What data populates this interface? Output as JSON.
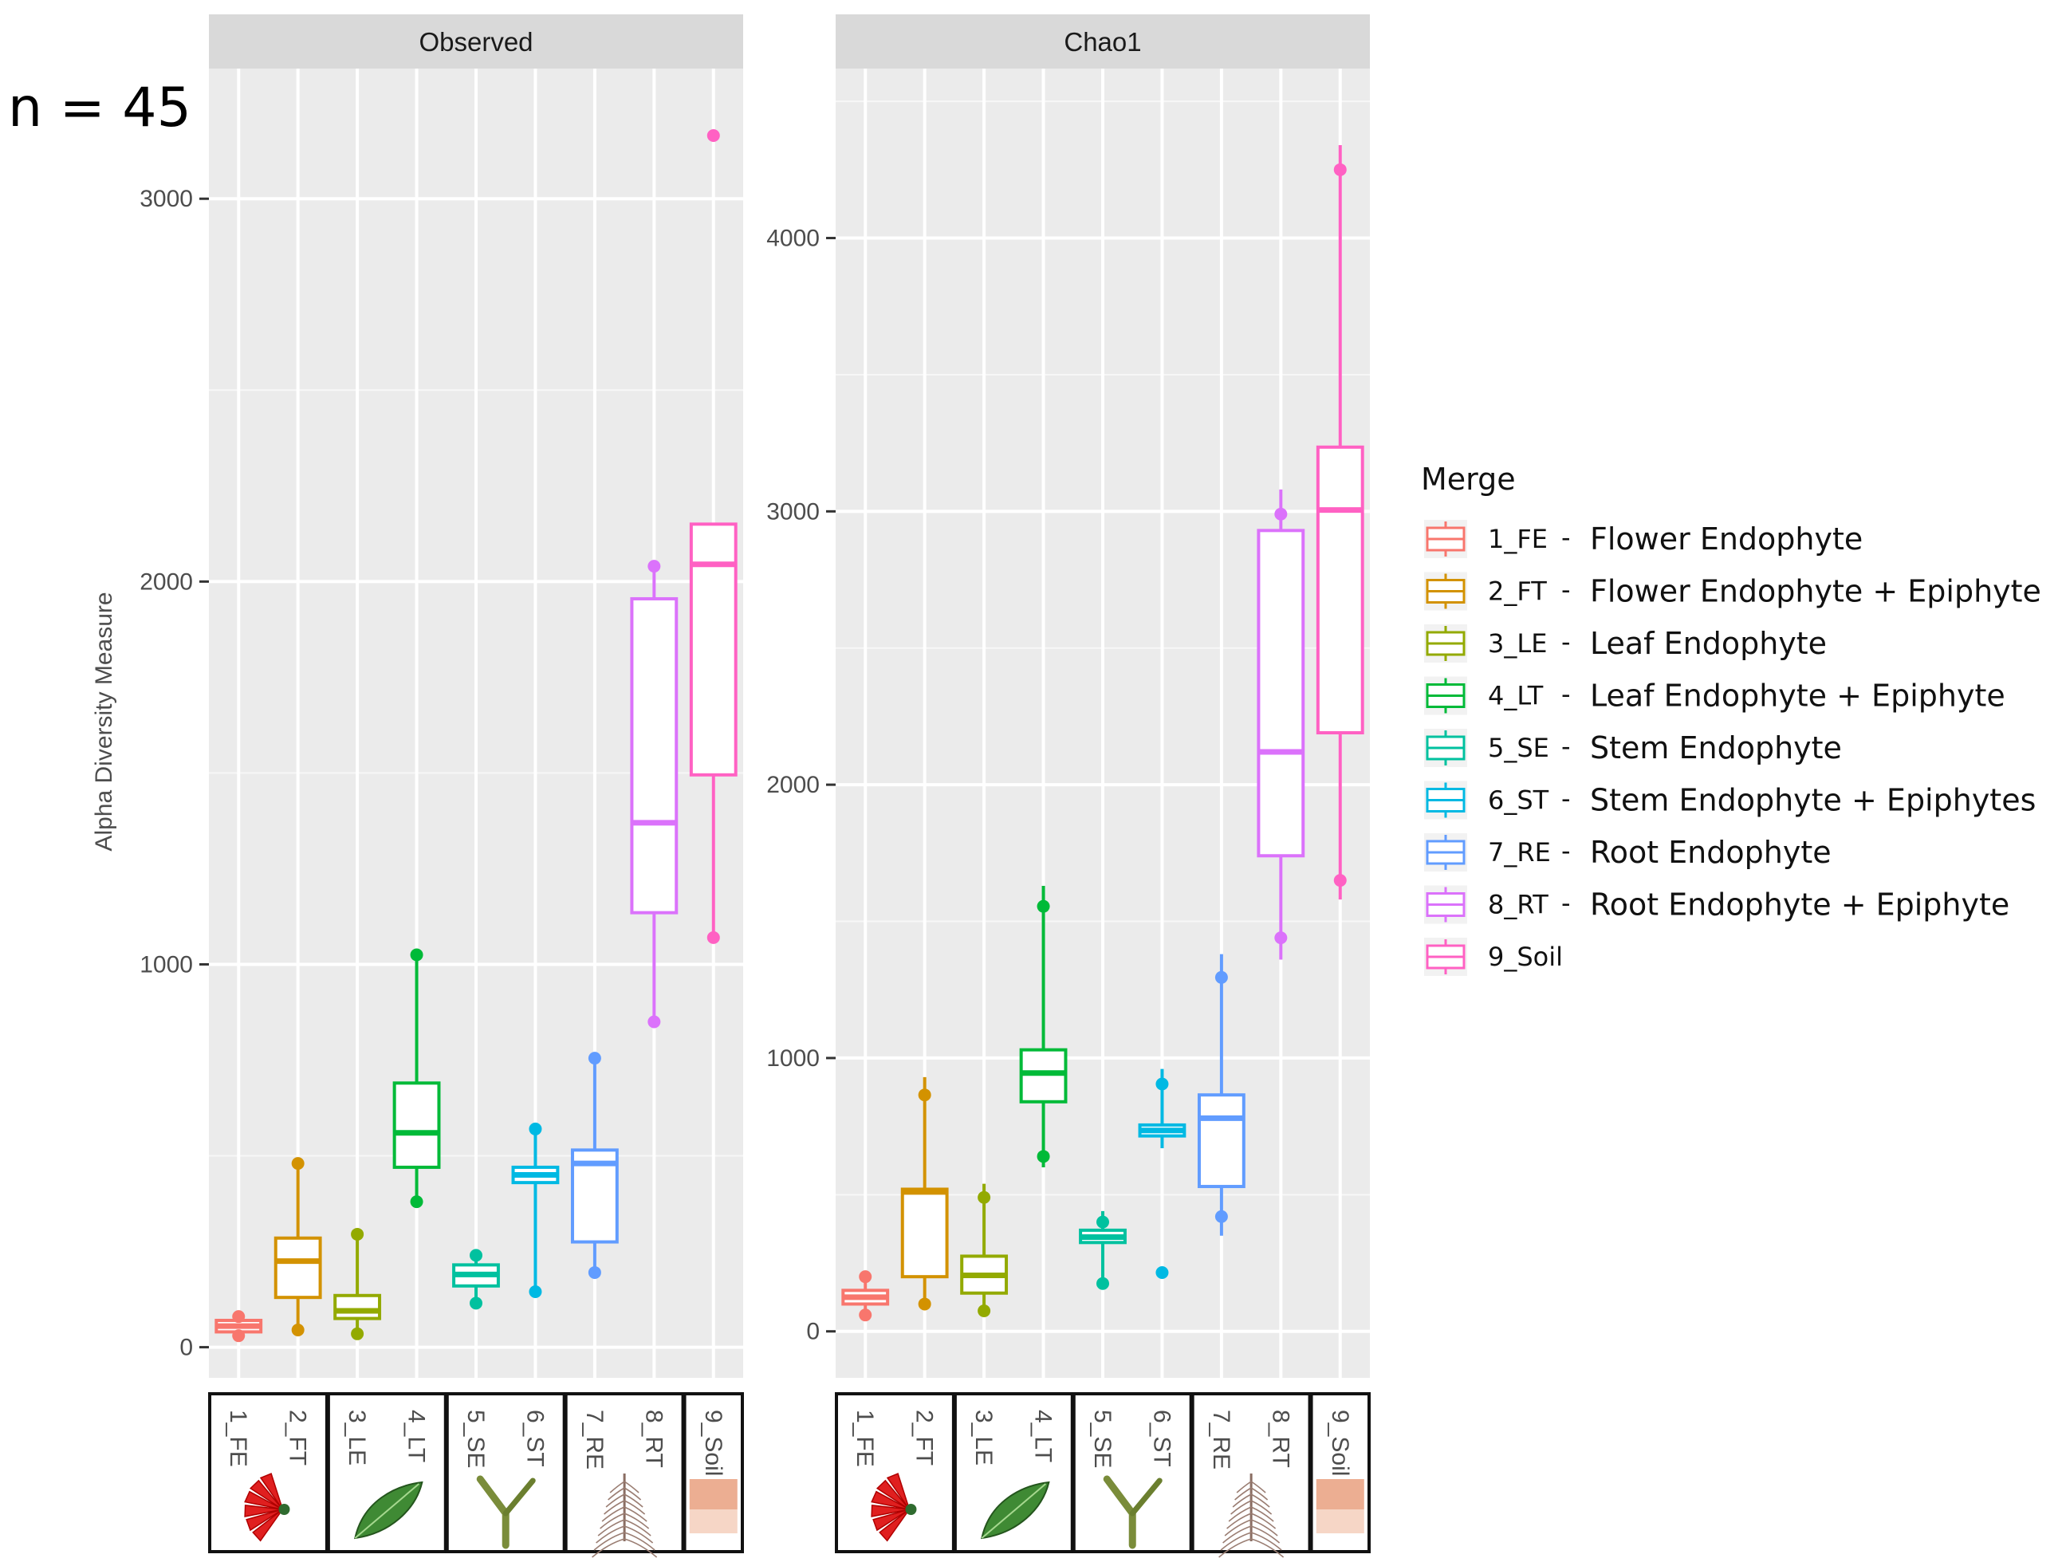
{
  "annotation": "n = 45",
  "colors": {
    "1_FE": "#F8766D",
    "2_FT": "#D39200",
    "3_LE": "#93AA00",
    "4_LT": "#00BA38",
    "5_SE": "#00C19F",
    "6_ST": "#00B9E3",
    "7_RE": "#619CFF",
    "8_RT": "#DB72FB",
    "9_Soil": "#FF61C3"
  },
  "legend": {
    "title": "Merge",
    "items": [
      {
        "key": "1_FE",
        "desc": "Flower Endophyte"
      },
      {
        "key": "2_FT",
        "desc": "Flower Endophyte + Epiphyte"
      },
      {
        "key": "3_LE",
        "desc": "Leaf Endophyte"
      },
      {
        "key": "4_LT",
        "desc": "Leaf Endophyte + Epiphyte"
      },
      {
        "key": "5_SE",
        "desc": "Stem Endophyte"
      },
      {
        "key": "6_ST",
        "desc": "Stem Endophyte + Epiphytes"
      },
      {
        "key": "7_RE",
        "desc": "Root Endophyte"
      },
      {
        "key": "8_RT",
        "desc": "Root Endophyte + Epiphyte"
      },
      {
        "key": "9_Soil",
        "desc": ""
      }
    ]
  },
  "icons": [
    {
      "name": "flower-icon",
      "label": "flower"
    },
    {
      "name": "leaf-icon",
      "label": "leaf"
    },
    {
      "name": "stem-icon",
      "label": "stem"
    },
    {
      "name": "root-icon",
      "label": "root"
    },
    {
      "name": "soil-icon",
      "label": "soil"
    }
  ],
  "chart_data": [
    {
      "type": "box",
      "title": "Observed",
      "ylabel": "Alpha Diversity Measure",
      "xlabel": "",
      "categories": [
        "1_FE",
        "2_FT",
        "3_LE",
        "4_LT",
        "5_SE",
        "6_ST",
        "7_RE",
        "8_RT",
        "9_Soil"
      ],
      "ylim": [
        -80,
        3340
      ],
      "yticks": [
        0,
        1000,
        2000,
        3000
      ],
      "yticklabels": [
        "0",
        "1000",
        "2000",
        "3000"
      ],
      "boxes": [
        {
          "q1": 40,
          "median": 55,
          "q3": 70,
          "whislo": 30,
          "whishi": 80,
          "points": [
            30,
            80
          ]
        },
        {
          "q1": 130,
          "median": 225,
          "q3": 285,
          "whislo": 45,
          "whishi": 480,
          "points": [
            45,
            480
          ]
        },
        {
          "q1": 75,
          "median": 95,
          "q3": 135,
          "whislo": 35,
          "whishi": 295,
          "points": [
            35,
            295
          ]
        },
        {
          "q1": 470,
          "median": 560,
          "q3": 690,
          "whislo": 380,
          "whishi": 1025,
          "points": [
            380,
            1025
          ]
        },
        {
          "q1": 160,
          "median": 190,
          "q3": 215,
          "whislo": 115,
          "whishi": 240,
          "points": [
            115,
            240
          ]
        },
        {
          "q1": 430,
          "median": 450,
          "q3": 470,
          "whislo": 145,
          "whishi": 570,
          "points": [
            145,
            570
          ]
        },
        {
          "q1": 275,
          "median": 480,
          "q3": 515,
          "whislo": 195,
          "whishi": 755,
          "points": [
            195,
            755
          ]
        },
        {
          "q1": 1135,
          "median": 1370,
          "q3": 1955,
          "whislo": 850,
          "whishi": 2040,
          "points": [
            850,
            2040
          ]
        },
        {
          "q1": 1495,
          "median": 2045,
          "q3": 2150,
          "whislo": 1070,
          "whishi": 2150,
          "points": [
            1070,
            3165
          ]
        }
      ]
    },
    {
      "type": "box",
      "title": "Chao1",
      "ylabel": "",
      "xlabel": "",
      "categories": [
        "1_FE",
        "2_FT",
        "3_LE",
        "4_LT",
        "5_SE",
        "6_ST",
        "7_RE",
        "8_RT",
        "9_Soil"
      ],
      "ylim": [
        -170,
        4620
      ],
      "yticks": [
        0,
        1000,
        2000,
        3000,
        4000
      ],
      "yticklabels": [
        "0",
        "1000",
        "2000",
        "3000",
        "4000"
      ],
      "boxes": [
        {
          "q1": 100,
          "median": 125,
          "q3": 150,
          "whislo": 60,
          "whishi": 200,
          "points": [
            60,
            200
          ]
        },
        {
          "q1": 200,
          "median": 510,
          "q3": 520,
          "whislo": 100,
          "whishi": 930,
          "points": [
            100,
            865
          ]
        },
        {
          "q1": 140,
          "median": 205,
          "q3": 275,
          "whislo": 70,
          "whishi": 540,
          "points": [
            75,
            490
          ]
        },
        {
          "q1": 840,
          "median": 945,
          "q3": 1030,
          "whislo": 600,
          "whishi": 1630,
          "points": [
            640,
            1555
          ]
        },
        {
          "q1": 325,
          "median": 345,
          "q3": 370,
          "whislo": 175,
          "whishi": 440,
          "points": [
            175,
            400
          ]
        },
        {
          "q1": 715,
          "median": 735,
          "q3": 755,
          "whislo": 670,
          "whishi": 960,
          "points": [
            215,
            905
          ]
        },
        {
          "q1": 530,
          "median": 780,
          "q3": 865,
          "whislo": 350,
          "whishi": 1380,
          "points": [
            420,
            1295
          ]
        },
        {
          "q1": 1740,
          "median": 2120,
          "q3": 2930,
          "whislo": 1360,
          "whishi": 3080,
          "points": [
            1440,
            2990
          ]
        },
        {
          "q1": 2190,
          "median": 3005,
          "q3": 3235,
          "whislo": 1580,
          "whishi": 4340,
          "points": [
            1650,
            4250
          ]
        }
      ]
    }
  ]
}
